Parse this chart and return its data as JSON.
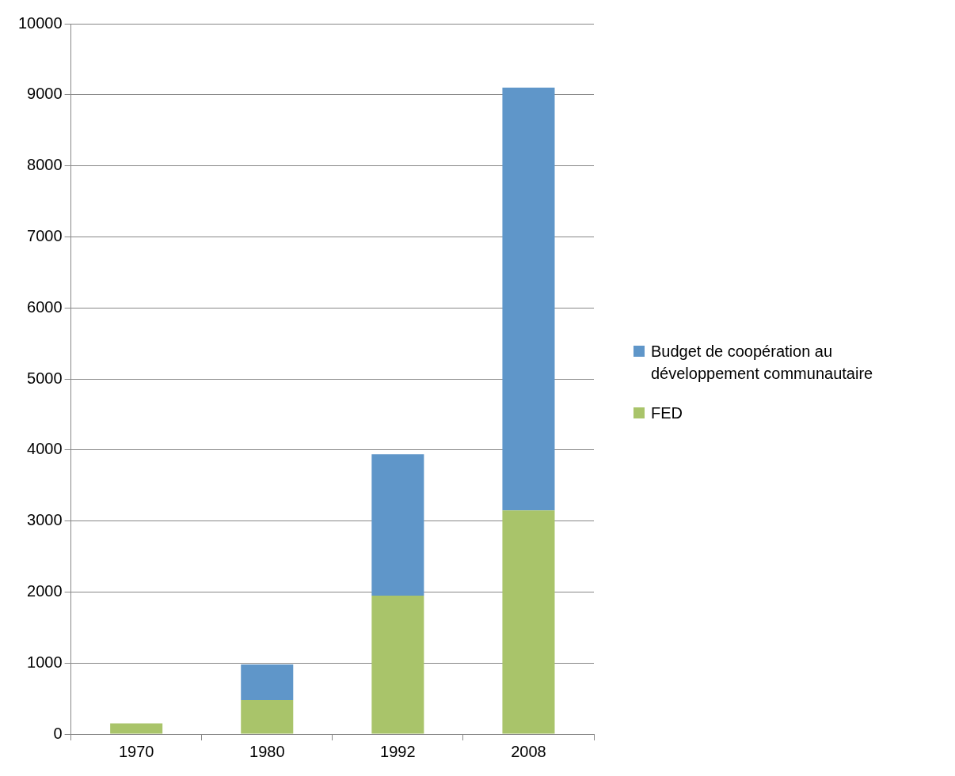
{
  "chart_data": {
    "type": "bar",
    "stacked": true,
    "categories": [
      "1970",
      "1980",
      "1992",
      "2008"
    ],
    "series": [
      {
        "name": "FED",
        "color": "#a9c46a",
        "values": [
          150,
          480,
          1950,
          3150
        ]
      },
      {
        "name": "Budget de coopération au développement communautaire",
        "color": "#5f96c9",
        "values": [
          0,
          500,
          1990,
          5950
        ]
      }
    ],
    "ylim": [
      0,
      10000
    ],
    "yticks": [
      0,
      1000,
      2000,
      3000,
      4000,
      5000,
      6000,
      7000,
      8000,
      9000,
      10000
    ],
    "grid": "y",
    "legend": "right"
  }
}
